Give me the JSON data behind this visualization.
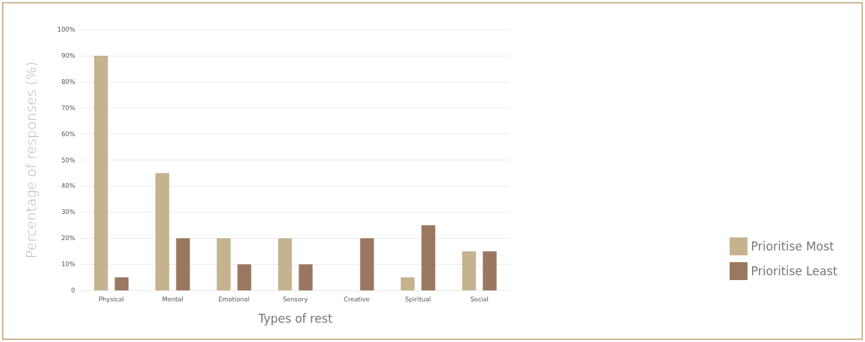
{
  "chart_data": {
    "type": "bar",
    "xlabel": "Types of rest",
    "ylabel": "Percentage of responses (%)",
    "categories": [
      "Physical",
      "Mental",
      "Emotional",
      "Sensory",
      "Creative",
      "Spiritual",
      "Social"
    ],
    "series": [
      {
        "name": "Prioritise Most",
        "color": "#c5b28e",
        "values": [
          90,
          45,
          20,
          20,
          0,
          5,
          15
        ]
      },
      {
        "name": "Prioritise Least",
        "color": "#9b7760",
        "values": [
          5,
          20,
          10,
          10,
          20,
          25,
          15
        ]
      }
    ],
    "ylim": [
      0,
      100
    ],
    "yticks": [
      0,
      {
        "value": 10,
        "label": "10%"
      },
      {
        "value": 20,
        "label": "20%"
      },
      {
        "value": 30,
        "label": "30%"
      },
      {
        "value": 40,
        "label": "40%"
      },
      {
        "value": 50,
        "label": "50%"
      },
      {
        "value": 60,
        "label": "60%"
      },
      {
        "value": 70,
        "label": "70%"
      },
      {
        "value": 80,
        "label": "80%"
      },
      {
        "value": 90,
        "label": "90%"
      },
      {
        "value": 100,
        "label": "100%"
      }
    ],
    "grid": "y",
    "legend": "right"
  }
}
